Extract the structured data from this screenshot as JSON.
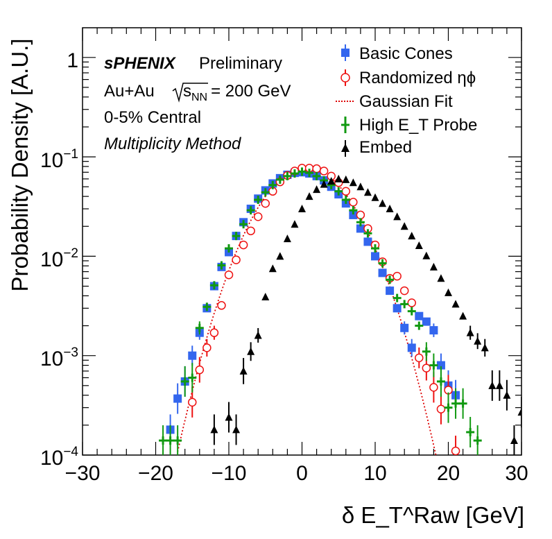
{
  "chart_data": {
    "type": "scatter",
    "title": "",
    "xlabel": "δ E_T^Raw [GeV]",
    "ylabel": "Probability Density [A.U.]",
    "xlim": [
      -30,
      30
    ],
    "ylim": [
      0.0001,
      1.7
    ],
    "yscale": "log",
    "grid": false,
    "legend_position": "top-right",
    "x_ticks": [
      "−30",
      "−20",
      "−10",
      "0",
      "10",
      "20",
      "30"
    ],
    "y_ticks": [
      {
        "base": "1",
        "exp": ""
      },
      {
        "base": "10",
        "exp": "−1"
      },
      {
        "base": "10",
        "exp": "−2"
      },
      {
        "base": "10",
        "exp": "−3"
      },
      {
        "base": "10",
        "exp": "−4"
      }
    ],
    "annotations": {
      "experiment": "sPHENIX",
      "status": "Preliminary",
      "collision": "Au+Au",
      "energy_sqrt": "s",
      "energy_sub": "NN",
      "energy_value": "= 200 GeV",
      "centrality": "0-5% Central",
      "method": "Multiplicity Method"
    },
    "series": [
      {
        "name": "Basic Cones",
        "color": "#3366ee",
        "marker": "square",
        "x": [
          -18,
          -17,
          -16,
          -15,
          -14,
          -13,
          -12,
          -11,
          -10,
          -9,
          -8,
          -7,
          -6,
          -5,
          -4,
          -3,
          -2,
          -1,
          0,
          1,
          2,
          3,
          4,
          5,
          6,
          7,
          8,
          9,
          10,
          11,
          12,
          13,
          14,
          15,
          16,
          17,
          18,
          19,
          20,
          21
        ],
        "y": [
          0.00018,
          0.00037,
          0.00055,
          0.001,
          0.0017,
          0.003,
          0.005,
          0.0078,
          0.011,
          0.016,
          0.022,
          0.03,
          0.038,
          0.046,
          0.054,
          0.061,
          0.066,
          0.069,
          0.07,
          0.068,
          0.064,
          0.058,
          0.05,
          0.042,
          0.034,
          0.026,
          0.019,
          0.014,
          0.01,
          0.0068,
          0.0045,
          0.003,
          0.0019,
          0.0012,
          0.0025,
          0.0022,
          0.0018,
          0.0008,
          0.0005,
          0.0004
        ]
      },
      {
        "name": "Randomized ηϕ",
        "color": "#ee1111",
        "marker": "open-circle",
        "x": [
          -15,
          -14,
          -13,
          -12,
          -11,
          -10,
          -9,
          -8,
          -7,
          -6,
          -5,
          -4,
          -3,
          -2,
          -1,
          0,
          1,
          2,
          3,
          4,
          5,
          6,
          7,
          8,
          9,
          10,
          11,
          12,
          13,
          14,
          15,
          16,
          17,
          18,
          19,
          20,
          21
        ],
        "y": [
          0.00034,
          0.00072,
          0.0012,
          0.0017,
          0.0032,
          0.0065,
          0.0092,
          0.013,
          0.018,
          0.025,
          0.034,
          0.045,
          0.056,
          0.065,
          0.072,
          0.077,
          0.077,
          0.076,
          0.072,
          0.064,
          0.055,
          0.045,
          0.035,
          0.026,
          0.019,
          0.013,
          0.0088,
          0.006,
          0.0063,
          0.0045,
          0.0034,
          0.00095,
          0.00075,
          0.00048,
          0.00029,
          0.00045,
          0.00011
        ]
      },
      {
        "name": "Gaussian Fit",
        "color": "#dd0000",
        "marker": "dotted-line",
        "mean": 0.6,
        "sigma": 4.85,
        "amplitude": 0.078
      },
      {
        "name": "High E_T Probe",
        "color": "#119911",
        "marker": "cross",
        "x": [
          -19,
          -18,
          -17,
          -16,
          -15,
          -14,
          -13,
          -12,
          -11,
          -10,
          -9,
          -8,
          -7,
          -6,
          -5,
          -4,
          -3,
          -2,
          -1,
          0,
          1,
          2,
          3,
          4,
          5,
          6,
          7,
          8,
          9,
          10,
          11,
          12,
          13,
          14,
          15,
          16,
          17,
          18,
          19,
          20,
          21,
          22,
          23,
          24
        ],
        "y": [
          0.00014,
          0.00014,
          0.00014,
          0.00055,
          0.0006,
          0.0019,
          0.0031,
          0.0051,
          0.0081,
          0.012,
          0.016,
          0.021,
          0.029,
          0.037,
          0.044,
          0.052,
          0.059,
          0.064,
          0.068,
          0.071,
          0.069,
          0.064,
          0.058,
          0.052,
          0.045,
          0.037,
          0.029,
          0.022,
          0.017,
          0.012,
          0.0085,
          0.0058,
          0.0038,
          0.0033,
          0.0028,
          0.002,
          0.0011,
          0.0008,
          0.00055,
          0.0003,
          0.00033,
          0.00033,
          0.00017,
          0.00014
        ]
      },
      {
        "name": "Embed",
        "color": "#000000",
        "marker": "triangle",
        "x": [
          -12,
          -10,
          -9,
          -8,
          -7,
          -6,
          -5,
          -4,
          -3,
          -2,
          -1,
          0,
          1,
          2,
          3,
          4,
          5,
          6,
          7,
          8,
          9,
          10,
          11,
          12,
          13,
          14,
          15,
          16,
          17,
          18,
          19,
          20,
          21,
          22,
          23,
          24,
          25,
          26,
          27,
          28,
          29,
          30
        ],
        "y": [
          0.00018,
          0.00024,
          0.00018,
          0.0007,
          0.0011,
          0.0016,
          0.0039,
          0.0075,
          0.01,
          0.015,
          0.021,
          0.03,
          0.04,
          0.047,
          0.053,
          0.057,
          0.06,
          0.059,
          0.055,
          0.05,
          0.044,
          0.039,
          0.034,
          0.03,
          0.025,
          0.02,
          0.016,
          0.0128,
          0.0101,
          0.0078,
          0.006,
          0.0043,
          0.0033,
          0.0025,
          0.0017,
          0.0014,
          0.0012,
          0.0005,
          0.0005,
          0.0004,
          0.00014,
          0.00027
        ]
      }
    ]
  }
}
